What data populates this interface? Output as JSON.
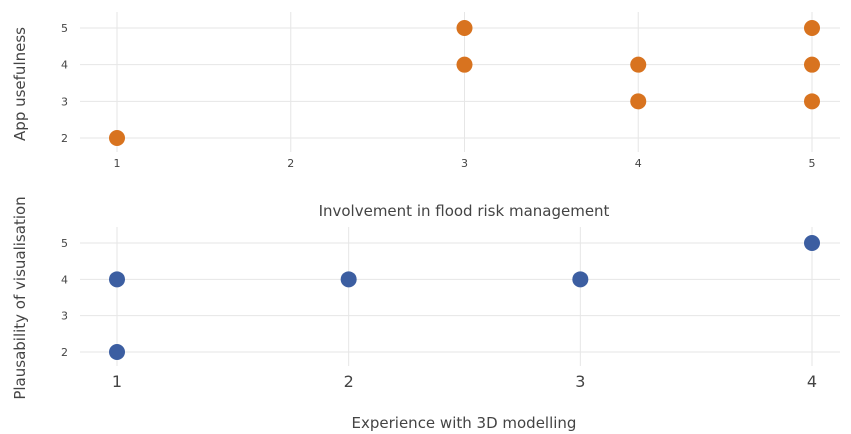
{
  "chart_data": [
    {
      "type": "scatter",
      "title": "",
      "xlabel": "Involvement in flood risk management",
      "ylabel": "App usefulness",
      "x_ticks": [
        1,
        2,
        3,
        4,
        5
      ],
      "y_ticks": [
        2,
        3,
        4,
        5
      ],
      "xlim": [
        1,
        5
      ],
      "ylim": [
        2,
        5
      ],
      "grid": true,
      "color": "#d8731f",
      "points": [
        {
          "x": 1,
          "y": 2
        },
        {
          "x": 3,
          "y": 5
        },
        {
          "x": 3,
          "y": 4
        },
        {
          "x": 4,
          "y": 4
        },
        {
          "x": 4,
          "y": 3
        },
        {
          "x": 5,
          "y": 5
        },
        {
          "x": 5,
          "y": 4
        },
        {
          "x": 5,
          "y": 3
        }
      ]
    },
    {
      "type": "scatter",
      "title": "",
      "xlabel": "Experience with 3D modelling",
      "ylabel": "Plausability of visualisation",
      "x_ticks": [
        1,
        2,
        3,
        4
      ],
      "y_ticks": [
        2,
        3,
        4,
        5
      ],
      "xlim": [
        1,
        4
      ],
      "ylim": [
        2,
        5
      ],
      "grid": true,
      "color": "#3c5ea1",
      "points": [
        {
          "x": 1,
          "y": 4
        },
        {
          "x": 1,
          "y": 2
        },
        {
          "x": 2,
          "y": 4
        },
        {
          "x": 3,
          "y": 4
        },
        {
          "x": 4,
          "y": 5
        }
      ]
    }
  ]
}
